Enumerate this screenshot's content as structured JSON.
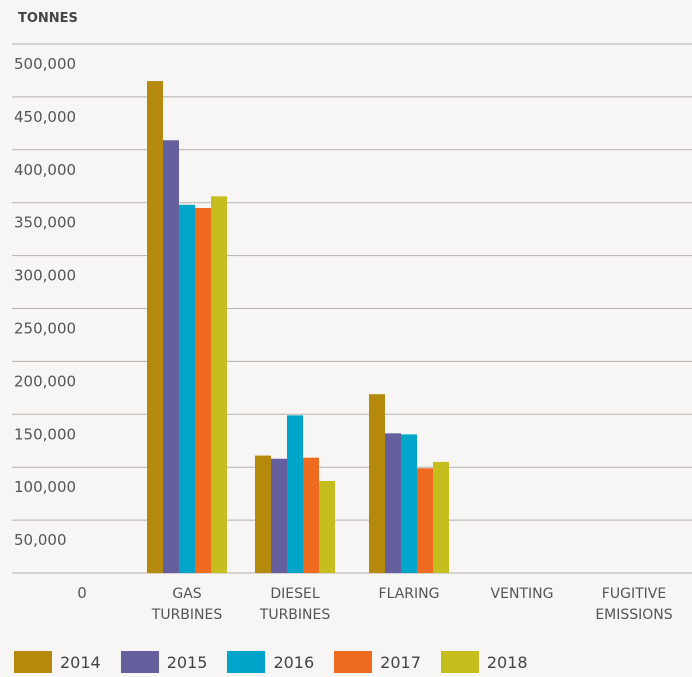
{
  "chart_data": {
    "type": "bar",
    "title": "",
    "ylabel": "TONNES",
    "xlabel": "",
    "ylim": [
      0,
      500000
    ],
    "yticks": [
      0,
      50000,
      100000,
      150000,
      200000,
      250000,
      300000,
      350000,
      400000,
      450000,
      500000
    ],
    "ytick_labels": [
      "0",
      "50,000",
      "100,000",
      "150,000",
      "200,000",
      "250,000",
      "300,000",
      "350,000",
      "400,000",
      "450,000",
      "500,000"
    ],
    "categories": [
      "GAS TURBINES",
      "DIESEL TURBINES",
      "FLARING",
      "VENTING",
      "FUGITIVE EMISSIONS"
    ],
    "series": [
      {
        "name": "2014",
        "color": "#b58a0c",
        "values": [
          465000,
          111000,
          169000,
          0,
          0
        ]
      },
      {
        "name": "2015",
        "color": "#655f9e",
        "values": [
          409000,
          108000,
          132000,
          0,
          0
        ]
      },
      {
        "name": "2016",
        "color": "#00a5c9",
        "values": [
          348000,
          149000,
          131000,
          0,
          0
        ]
      },
      {
        "name": "2017",
        "color": "#f06b22",
        "values": [
          345000,
          109000,
          99000,
          0,
          0
        ]
      },
      {
        "name": "2018",
        "color": "#c6bd1f",
        "values": [
          356000,
          87000,
          105000,
          0,
          0
        ]
      }
    ],
    "grid": true,
    "legend_position": "bottom"
  }
}
